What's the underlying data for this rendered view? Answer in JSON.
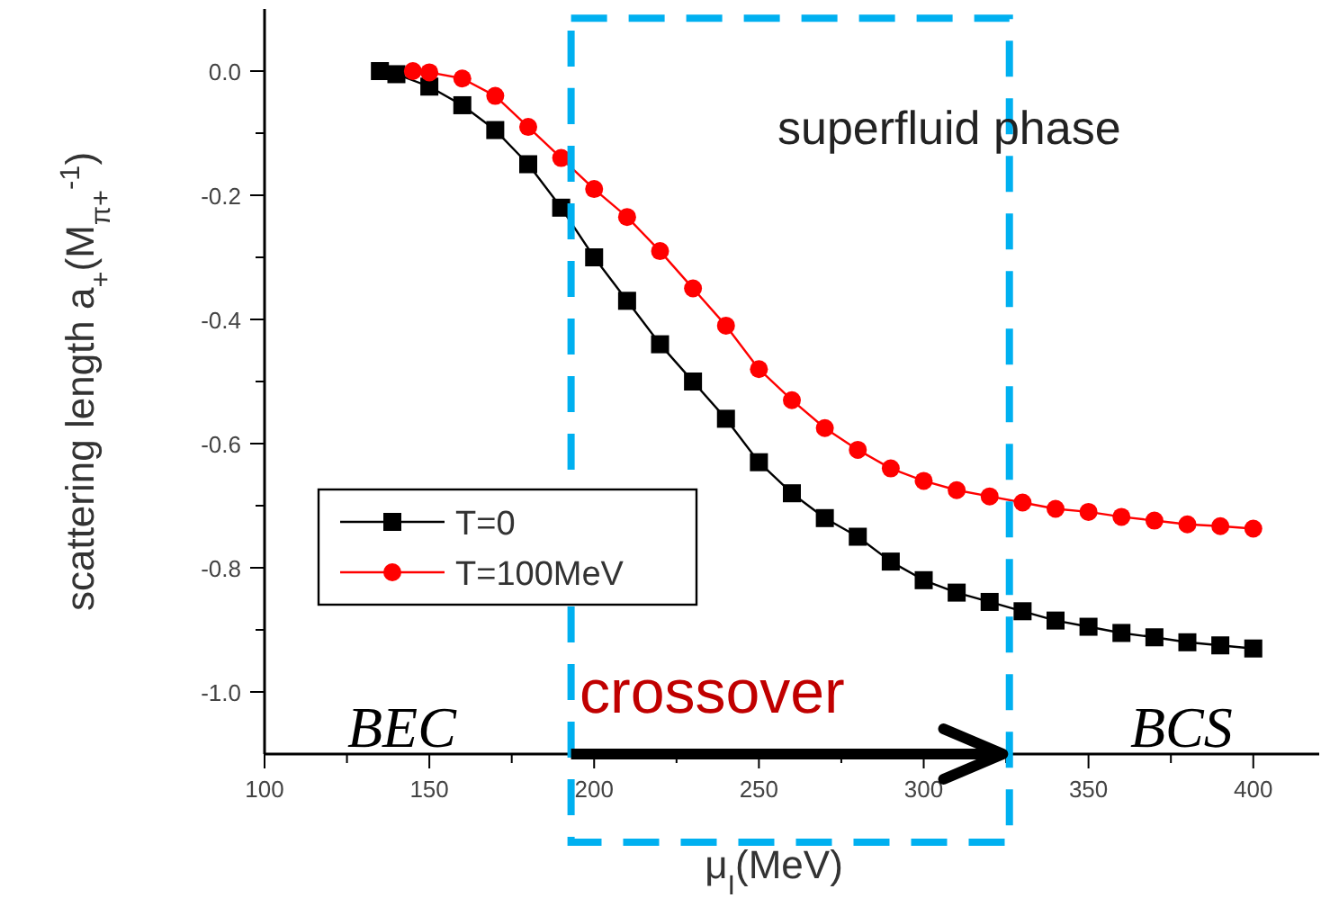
{
  "chart_data": {
    "type": "line",
    "xlabel": "μ$_{I}$(MeV)",
    "ylabel": "scattering length a$_{+}$(M$_{π+}$$^{-1}$)",
    "xlim": [
      100,
      420
    ],
    "ylim": [
      -1.1,
      0.1
    ],
    "xticks": [
      100,
      {
        "value": 125,
        "label": null
      },
      150,
      {
        "value": 175,
        "label": null
      },
      200,
      {
        "value": 225,
        "label": null
      },
      250,
      {
        "value": 275,
        "label": null
      },
      300,
      {
        "value": 325,
        "label": null
      },
      350,
      {
        "value": 375,
        "label": null
      },
      400
    ],
    "yticks": [
      {
        "value": 0,
        "label": "0.0"
      },
      {
        "value": -0.1,
        "label": null
      },
      -0.2,
      {
        "value": -0.3,
        "label": null
      },
      -0.4,
      {
        "value": -0.5,
        "label": null
      },
      -0.6,
      {
        "value": -0.7,
        "label": null
      },
      -0.8,
      {
        "value": -0.9,
        "label": null
      },
      {
        "value": -1,
        "label": "-1.0"
      }
    ],
    "grid": false,
    "legend": "left",
    "series": [
      {
        "name": "T=0",
        "color": "#000000",
        "marker": "square",
        "x": [
          135,
          140,
          150,
          160,
          170,
          180,
          190,
          200,
          210,
          220,
          230,
          240,
          250,
          260,
          270,
          280,
          290,
          300,
          310,
          320,
          330,
          340,
          350,
          360,
          370,
          380,
          390,
          400
        ],
        "values": [
          0,
          -0.005,
          -0.025,
          -0.055,
          -0.095,
          -0.15,
          -0.22,
          -0.3,
          -0.37,
          -0.44,
          -0.5,
          -0.56,
          -0.63,
          -0.68,
          -0.72,
          -0.75,
          -0.79,
          -0.82,
          -0.84,
          -0.855,
          -0.87,
          -0.885,
          -0.895,
          -0.905,
          -0.912,
          -0.92,
          -0.925,
          -0.93
        ]
      },
      {
        "name": "T=100MeV",
        "color": "#ff0000",
        "marker": "circle",
        "x": [
          145,
          150,
          160,
          170,
          180,
          190,
          200,
          210,
          220,
          230,
          240,
          250,
          260,
          270,
          280,
          290,
          300,
          310,
          320,
          330,
          340,
          350,
          360,
          370,
          380,
          390,
          400
        ],
        "values": [
          0,
          -0.002,
          -0.012,
          -0.04,
          -0.09,
          -0.14,
          -0.19,
          -0.235,
          -0.29,
          -0.35,
          -0.41,
          -0.48,
          -0.53,
          -0.575,
          -0.61,
          -0.64,
          -0.66,
          -0.675,
          -0.685,
          -0.695,
          -0.705,
          -0.71,
          -0.718,
          -0.724,
          -0.73,
          -0.733,
          -0.737
        ]
      }
    ],
    "annotations": [
      "superfluid phase",
      "BEC",
      "crossover",
      "BCS"
    ]
  }
}
